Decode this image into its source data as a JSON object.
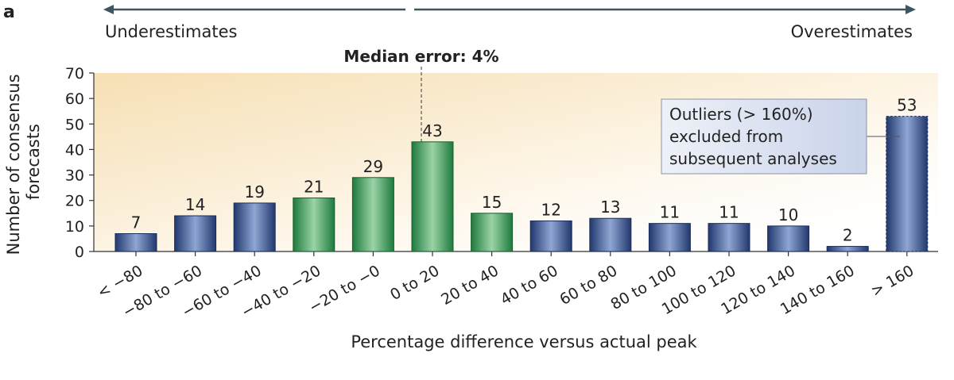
{
  "panel_label": "a",
  "direction_labels": {
    "left": "Underestimates",
    "right": "Overestimates"
  },
  "median_label": "Median error: 4%",
  "callout_lines": [
    "Outliers (> 160%)",
    "excluded from",
    "subsequent analyses"
  ],
  "colors": {
    "blue_bar": "#2f4d8f",
    "green_bar": "#3a8f52",
    "arrow": "#3d5560",
    "background_gradient": "#f6dfb4",
    "callout_fill": "#dbe2f0"
  },
  "chart_data": {
    "type": "bar",
    "title": "",
    "xlabel": "Percentage difference versus actual peak",
    "ylabel": "Number of consensus forecasts",
    "ylabel_lines": [
      "Number of consensus",
      "forecasts"
    ],
    "ylim": [
      0,
      70
    ],
    "yticks": [
      0,
      10,
      20,
      30,
      40,
      50,
      60,
      70
    ],
    "grid": false,
    "categories": [
      "< −80",
      "−80 to −60",
      "−60 to −40",
      "−40 to −20",
      "−20 to −0",
      "0 to 20",
      "20 to 40",
      "40 to 60",
      "60 to 80",
      "80 to 100",
      "100 to 120",
      "120 to 140",
      "140 to 160",
      "> 160"
    ],
    "values": [
      7,
      14,
      19,
      21,
      29,
      43,
      15,
      12,
      13,
      11,
      11,
      10,
      2,
      53
    ],
    "bar_colors": [
      "blue",
      "blue",
      "blue",
      "green",
      "green",
      "green",
      "green",
      "blue",
      "blue",
      "blue",
      "blue",
      "blue",
      "blue",
      "blue"
    ]
  }
}
